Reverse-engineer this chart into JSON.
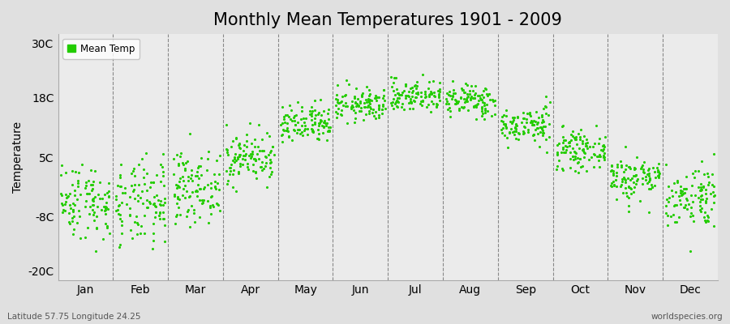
{
  "title": "Monthly Mean Temperatures 1901 - 2009",
  "ylabel": "Temperature",
  "yticks": [
    -20,
    -8,
    5,
    18,
    30
  ],
  "ytick_labels": [
    "-20C",
    "-8C",
    "5C",
    "18C",
    "30C"
  ],
  "ylim": [
    -22,
    32
  ],
  "months": [
    "Jan",
    "Feb",
    "Mar",
    "Apr",
    "May",
    "Jun",
    "Jul",
    "Aug",
    "Sep",
    "Oct",
    "Nov",
    "Dec"
  ],
  "monthly_mean_temps": [
    -4.5,
    -5.5,
    -1.5,
    5.0,
    12.0,
    16.5,
    18.5,
    17.5,
    12.0,
    6.5,
    0.5,
    -3.5
  ],
  "monthly_std": [
    4.2,
    4.8,
    3.8,
    2.8,
    2.2,
    1.8,
    1.8,
    1.8,
    2.0,
    2.0,
    2.5,
    3.5
  ],
  "n_years": 109,
  "dot_color": "#22CC00",
  "dot_size": 5,
  "background_color": "#E0E0E0",
  "plot_bg_color": "#EBEBEB",
  "title_fontsize": 15,
  "axis_label_fontsize": 10,
  "tick_fontsize": 10,
  "subtitle_left": "Latitude 57.75 Longitude 24.25",
  "subtitle_right": "worldspecies.org",
  "legend_label": "Mean Temp",
  "vline_color": "#888888",
  "vline_style": "--"
}
